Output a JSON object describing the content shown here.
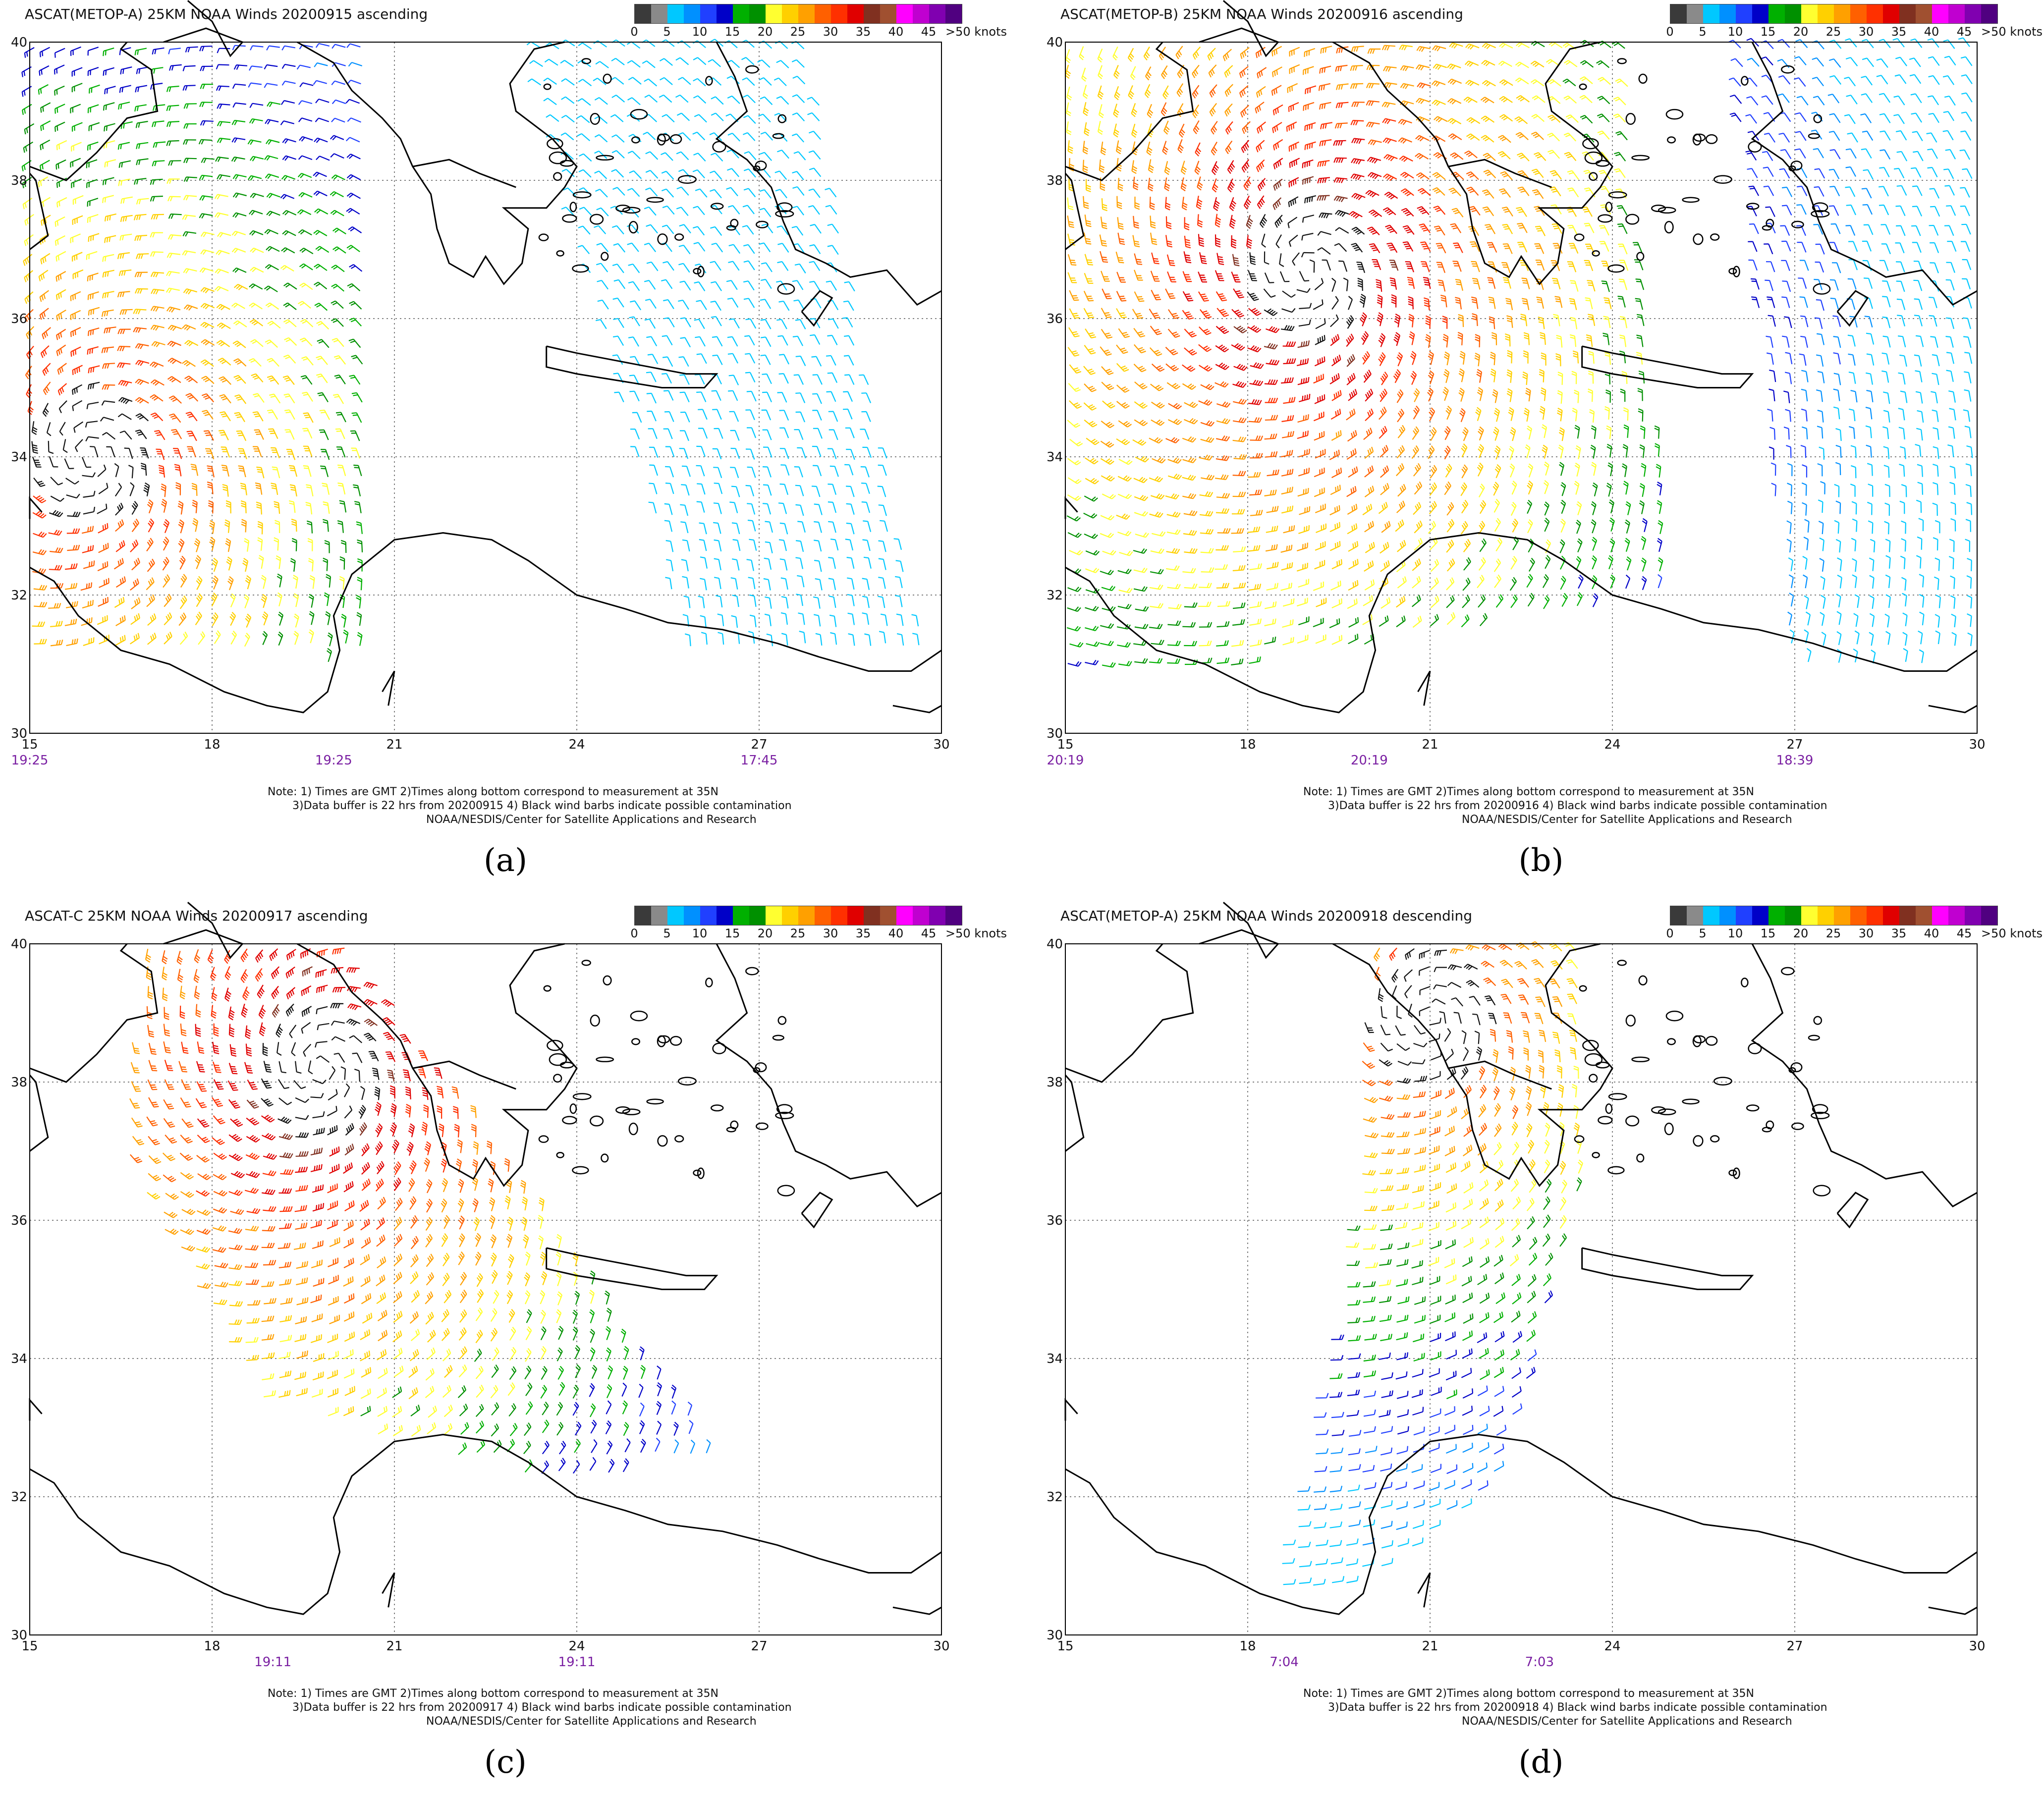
{
  "legend": {
    "colors": [
      "#3a3a3a",
      "#8a8a8a",
      "#00c8ff",
      "#0090ff",
      "#2040ff",
      "#0000c8",
      "#00b000",
      "#009000",
      "#ffff30",
      "#ffd000",
      "#ffa000",
      "#ff6000",
      "#ff3000",
      "#e00000",
      "#803020",
      "#a05030",
      "#ff00ff",
      "#c000d0",
      "#8000b0",
      "#500080"
    ],
    "ticks": [
      "0",
      "5",
      "10",
      "15",
      "20",
      "25",
      "30",
      "35",
      "40",
      "45",
      ">50 knots"
    ]
  },
  "panels": [
    {
      "title": "ASCAT(METOP-A) 25KM NOAA Winds 20200915 ascending",
      "times": [
        "19:25",
        "19:25",
        "17:45"
      ],
      "note1": "Note: 1) Times are GMT 2)Times along bottom correspond to measurement at 35N",
      "note2": "3)Data buffer is 22 hrs from 20200915 4) Black wind barbs indicate possible contamination",
      "note3": "NOAA/NESDIS/Center for Satellite Applications and Research",
      "label": "(a)"
    },
    {
      "title": "ASCAT(METOP-B) 25KM NOAA Winds 20200916 ascending",
      "times": [
        "20:19",
        "20:19",
        "18:39"
      ],
      "note1": "Note: 1) Times are GMT 2)Times along bottom correspond to measurement at 35N",
      "note2": "3)Data buffer is 22 hrs from 20200916 4) Black wind barbs indicate possible contamination",
      "note3": "NOAA/NESDIS/Center for Satellite Applications and Research",
      "label": "(b)"
    },
    {
      "title": "ASCAT-C 25KM NOAA Winds 20200917 ascending",
      "times": [
        "19:11",
        "19:11"
      ],
      "note1": "Note: 1) Times are GMT 2)Times along bottom correspond to measurement at 35N",
      "note2": "3)Data buffer is 22 hrs from 20200917 4) Black wind barbs indicate possible contamination",
      "note3": "NOAA/NESDIS/Center for Satellite Applications and Research",
      "label": "(c)"
    },
    {
      "title": "ASCAT(METOP-A) 25KM NOAA Winds 20200918 descending",
      "times": [
        "7:04",
        "7:03"
      ],
      "note1": "Note: 1) Times are GMT 2)Times along bottom correspond to measurement at 35N",
      "note2": "3)Data buffer is 22 hrs from 20200918 4) Black wind barbs indicate possible contamination",
      "note3": "NOAA/NESDIS/Center for Satellite Applications and Research",
      "label": "(d)"
    }
  ],
  "lat_labels": [
    "40",
    "38",
    "36",
    "34",
    "32",
    "30"
  ],
  "lon_labels": [
    "15",
    "18",
    "21",
    "24",
    "27",
    "30"
  ]
}
